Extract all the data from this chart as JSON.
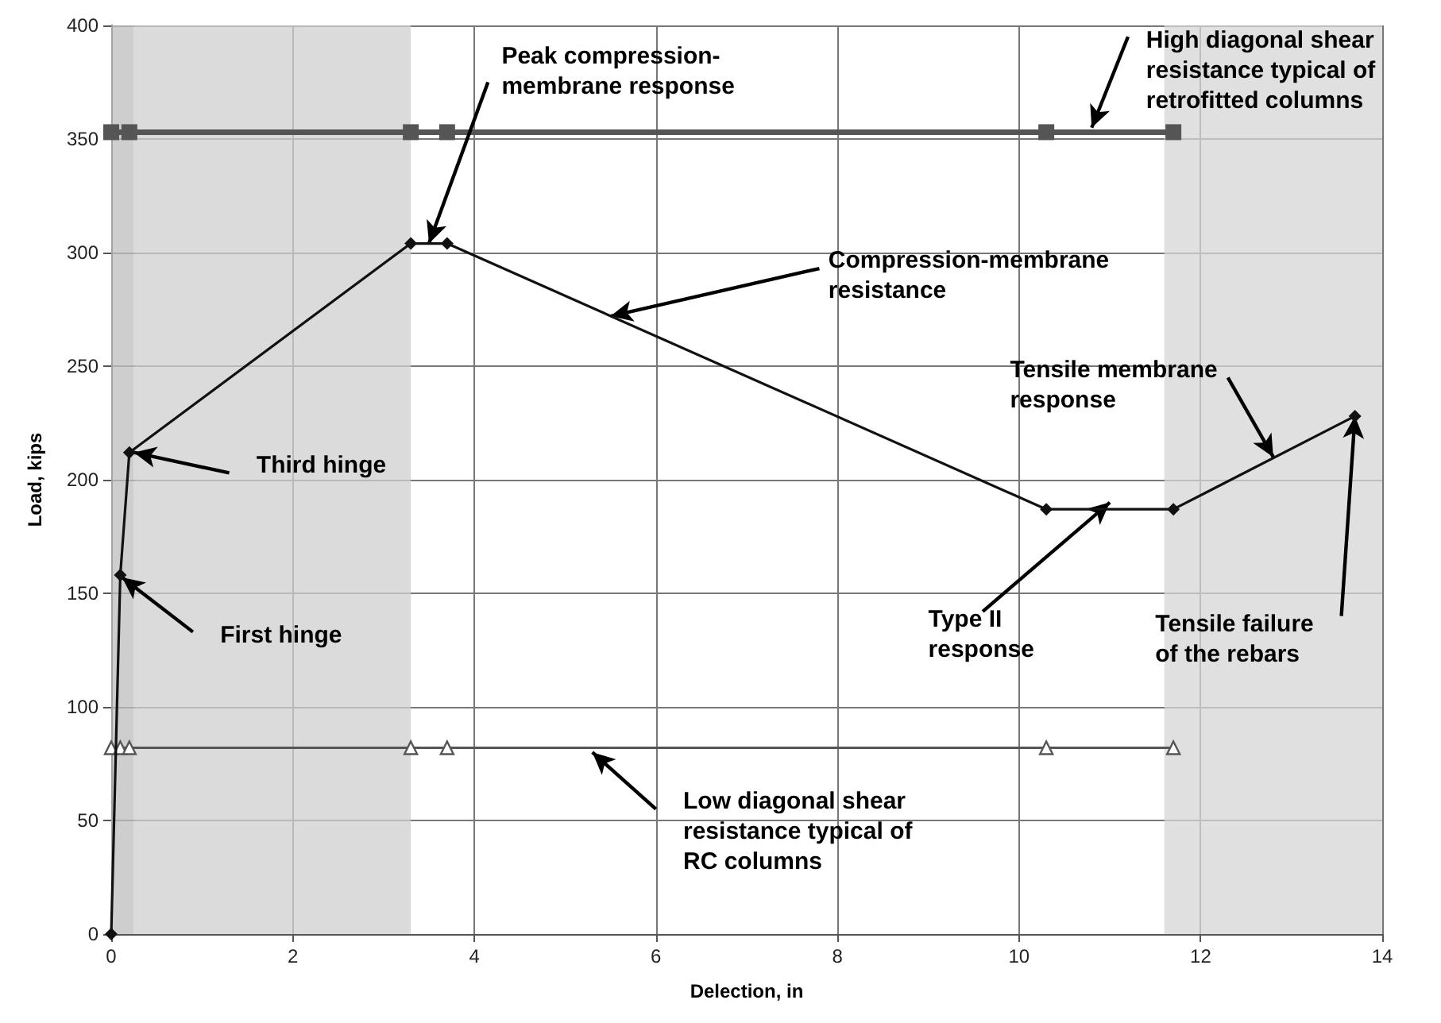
{
  "chart_data": {
    "type": "line",
    "xlabel": "Delection, in",
    "ylabel": "Load, kips",
    "xlim": [
      0,
      14
    ],
    "xticks": [
      0,
      2,
      4,
      6,
      8,
      10,
      12,
      14
    ],
    "ylim": [
      0,
      400
    ],
    "yticks": [
      0,
      50,
      100,
      150,
      200,
      250,
      300,
      350,
      400
    ],
    "grid": true,
    "series": [
      {
        "color": "#555555",
        "marker": "square",
        "x": [
          0,
          0.2,
          3.3,
          3.7,
          10.3,
          11.7
        ],
        "values": [
          353,
          353,
          353,
          353,
          353,
          353
        ]
      },
      {
        "color": "#555555",
        "marker": "triangle",
        "x": [
          0,
          0.1,
          0.2,
          3.3,
          3.7,
          10.3,
          11.7
        ],
        "values": [
          82,
          82,
          82,
          82,
          82,
          82,
          82
        ]
      },
      {
        "color": "#111111",
        "marker": "diamond",
        "x": [
          0,
          0.1,
          0.2,
          3.3,
          3.7,
          10.3,
          11.7,
          13.7
        ],
        "values": [
          0,
          158,
          212,
          304,
          304,
          187,
          187,
          228
        ]
      }
    ],
    "bands": [
      {
        "axis": "x",
        "from": 0,
        "to": 0.25,
        "color": "#bdbdbd"
      },
      {
        "axis": "x",
        "from": 0.25,
        "to": 3.3,
        "color": "#cfcfcf"
      },
      {
        "axis": "x",
        "from": 11.6,
        "to": 14,
        "color": "#d6d6d6"
      }
    ],
    "annotations": [
      {
        "text": "Peak compression-\nmembrane response",
        "x": 3.5,
        "y": 304
      },
      {
        "text": "Compression-membrane\nresistance",
        "x": 5.5,
        "y": 272
      },
      {
        "text": "High diagonal shear\nresistance typical of\nretrofitted columns",
        "x": 10.8,
        "y": 355
      },
      {
        "text": "Tensile membrane\nresponse",
        "x": 12.8,
        "y": 210
      },
      {
        "text": "Tensile failure\nof the rebars",
        "x": 13.7,
        "y": 228
      },
      {
        "text": "Type II\nresponse",
        "x": 11,
        "y": 190
      },
      {
        "text": "Third hinge",
        "x": 0.25,
        "y": 212
      },
      {
        "text": "First hinge",
        "x": 0.12,
        "y": 157
      },
      {
        "text": "Low diagonal shear\nresistance typical of\nRC columns",
        "x": 5.3,
        "y": 80
      }
    ]
  }
}
